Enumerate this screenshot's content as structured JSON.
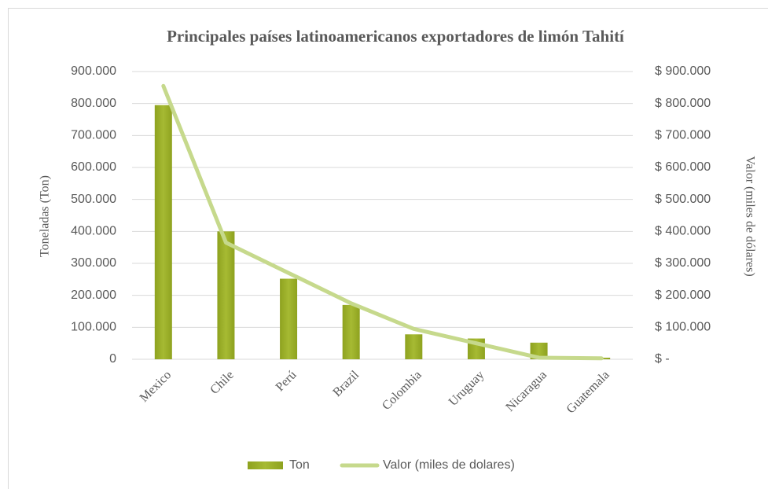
{
  "chart_data": {
    "type": "bar",
    "title": "Principales países latinoamericanos exportadores de limón Tahití",
    "categories": [
      "Mexico",
      "Chile",
      "Perú",
      "Brazil",
      "Colombia",
      "Uruguay",
      "Nicaragua",
      "Guatemala"
    ],
    "series": [
      {
        "name": "Ton",
        "type": "bar",
        "color": "#9db12a",
        "values": [
          795000,
          400000,
          252000,
          170000,
          78000,
          65000,
          52000,
          5000
        ]
      },
      {
        "name": "Valor (miles de dolares)",
        "type": "line",
        "axis": "y2",
        "color": "#c6d98c",
        "values": [
          855000,
          365000,
          270000,
          175000,
          95000,
          50000,
          5000,
          3000
        ]
      }
    ],
    "ylabel": "Toneladas (Ton)",
    "y2label": "Valor (miles  de dólares)",
    "ylim": [
      0,
      900000
    ],
    "yticks": [
      0,
      {
        "value": 100000,
        "label": "100.000"
      },
      {
        "value": 200000,
        "label": "200.000"
      },
      {
        "value": 300000,
        "label": "300.000"
      },
      {
        "value": 400000,
        "label": "400.000"
      },
      {
        "value": 500000,
        "label": "500.000"
      },
      {
        "value": 600000,
        "label": "600.000"
      },
      {
        "value": 700000,
        "label": "700.000"
      },
      {
        "value": 800000,
        "label": "800.000"
      },
      {
        "value": 900000,
        "label": "900.000"
      }
    ],
    "y2lim": [
      0,
      900000
    ],
    "y2ticks": [
      {
        "value": 0,
        "label": "$ -"
      },
      {
        "value": 100000,
        "label": "$ 100.000"
      },
      {
        "value": 200000,
        "label": "$ 200.000"
      },
      {
        "value": 300000,
        "label": "$ 300.000"
      },
      {
        "value": 400000,
        "label": "$ 400.000"
      },
      {
        "value": 500000,
        "label": "$ 500.000"
      },
      {
        "value": 600000,
        "label": "$ 600.000"
      },
      {
        "value": 700000,
        "label": "$ 700.000"
      },
      {
        "value": 800000,
        "label": "$ 800.000"
      },
      {
        "value": 900000,
        "label": "$ 900.000"
      }
    ],
    "grid": true,
    "legend": "bottom"
  }
}
